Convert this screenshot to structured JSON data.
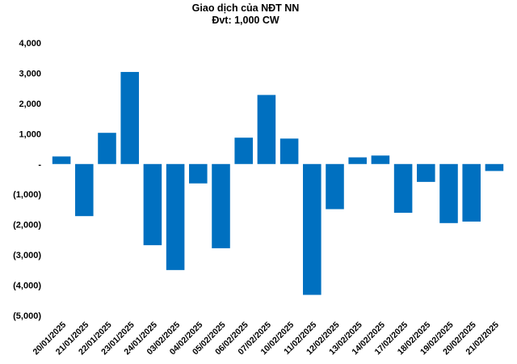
{
  "chart_data": {
    "type": "bar",
    "title": "Giao dịch của NĐT NN",
    "subtitle": "Đvt: 1,000 CW",
    "xlabel": "",
    "ylabel": "",
    "ylim": [
      -5000,
      4000
    ],
    "yticks": [
      4000,
      3000,
      2000,
      1000,
      0,
      -1000,
      -2000,
      -3000,
      -4000,
      -5000
    ],
    "ytick_labels": [
      "4,000",
      "3,000",
      "2,000",
      "1,000",
      "-",
      "(1,000)",
      "(2,000)",
      "(3,000)",
      "(4,000)",
      "(5,000)"
    ],
    "grid": false,
    "legend": "none",
    "bar_color": "#0070C0",
    "categories": [
      "20/01/2025",
      "21/01/2025",
      "22/01/2025",
      "23/01/2025",
      "24/01/2025",
      "03/02/2025",
      "04/02/2025",
      "05/02/2025",
      "06/02/2025",
      "07/02/2025",
      "10/02/2025",
      "11/02/2025",
      "12/02/2025",
      "13/02/2025",
      "14/02/2025",
      "17/02/2025",
      "18/02/2025",
      "19/02/2025",
      "20/02/2025",
      "21/02/2025"
    ],
    "values": [
      250,
      -1720,
      1030,
      3040,
      -2680,
      -3500,
      -640,
      -2780,
      870,
      2280,
      840,
      -4320,
      -1490,
      220,
      280,
      -1610,
      -590,
      -1950,
      -1900,
      -230
    ]
  }
}
